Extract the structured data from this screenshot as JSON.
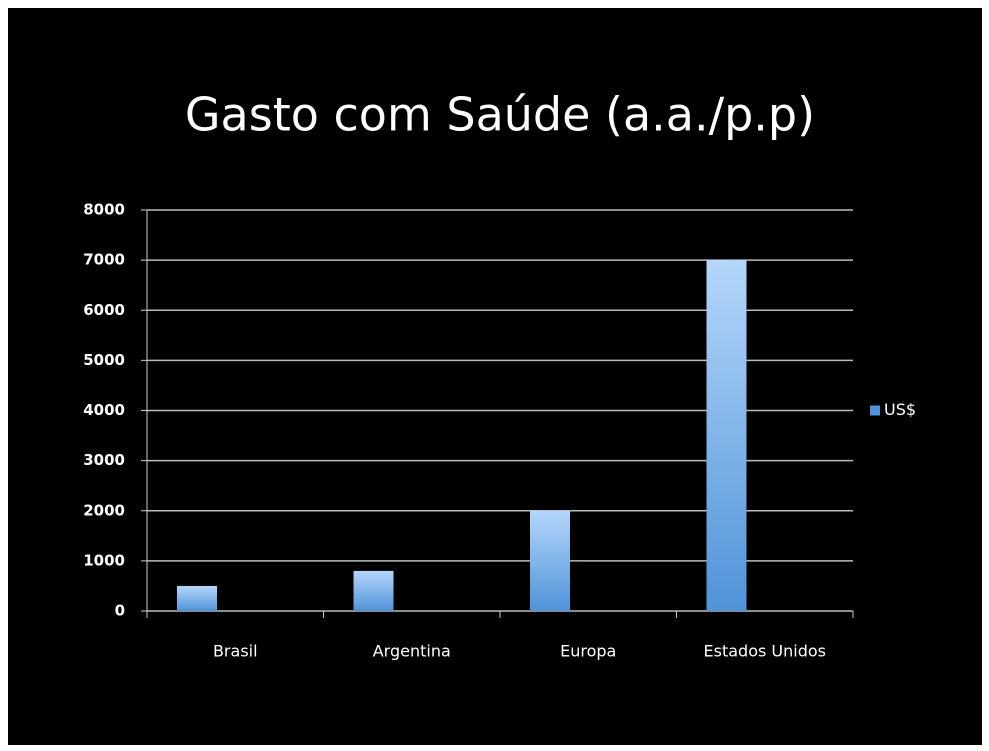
{
  "chart_data": {
    "type": "bar",
    "title": "Gasto com Saúde (a.a./p.p)",
    "categories": [
      "Brasil",
      "Argentina",
      "Europa",
      "Estados Unidos"
    ],
    "series": [
      {
        "name": "US$",
        "color": "#4f93d8",
        "values": [
          500,
          800,
          2000,
          7000
        ]
      }
    ],
    "ylim": [
      0,
      8000
    ],
    "yticks": [
      0,
      1000,
      2000,
      3000,
      4000,
      5000,
      6000,
      7000,
      8000
    ],
    "grid": true,
    "legend": "right"
  }
}
